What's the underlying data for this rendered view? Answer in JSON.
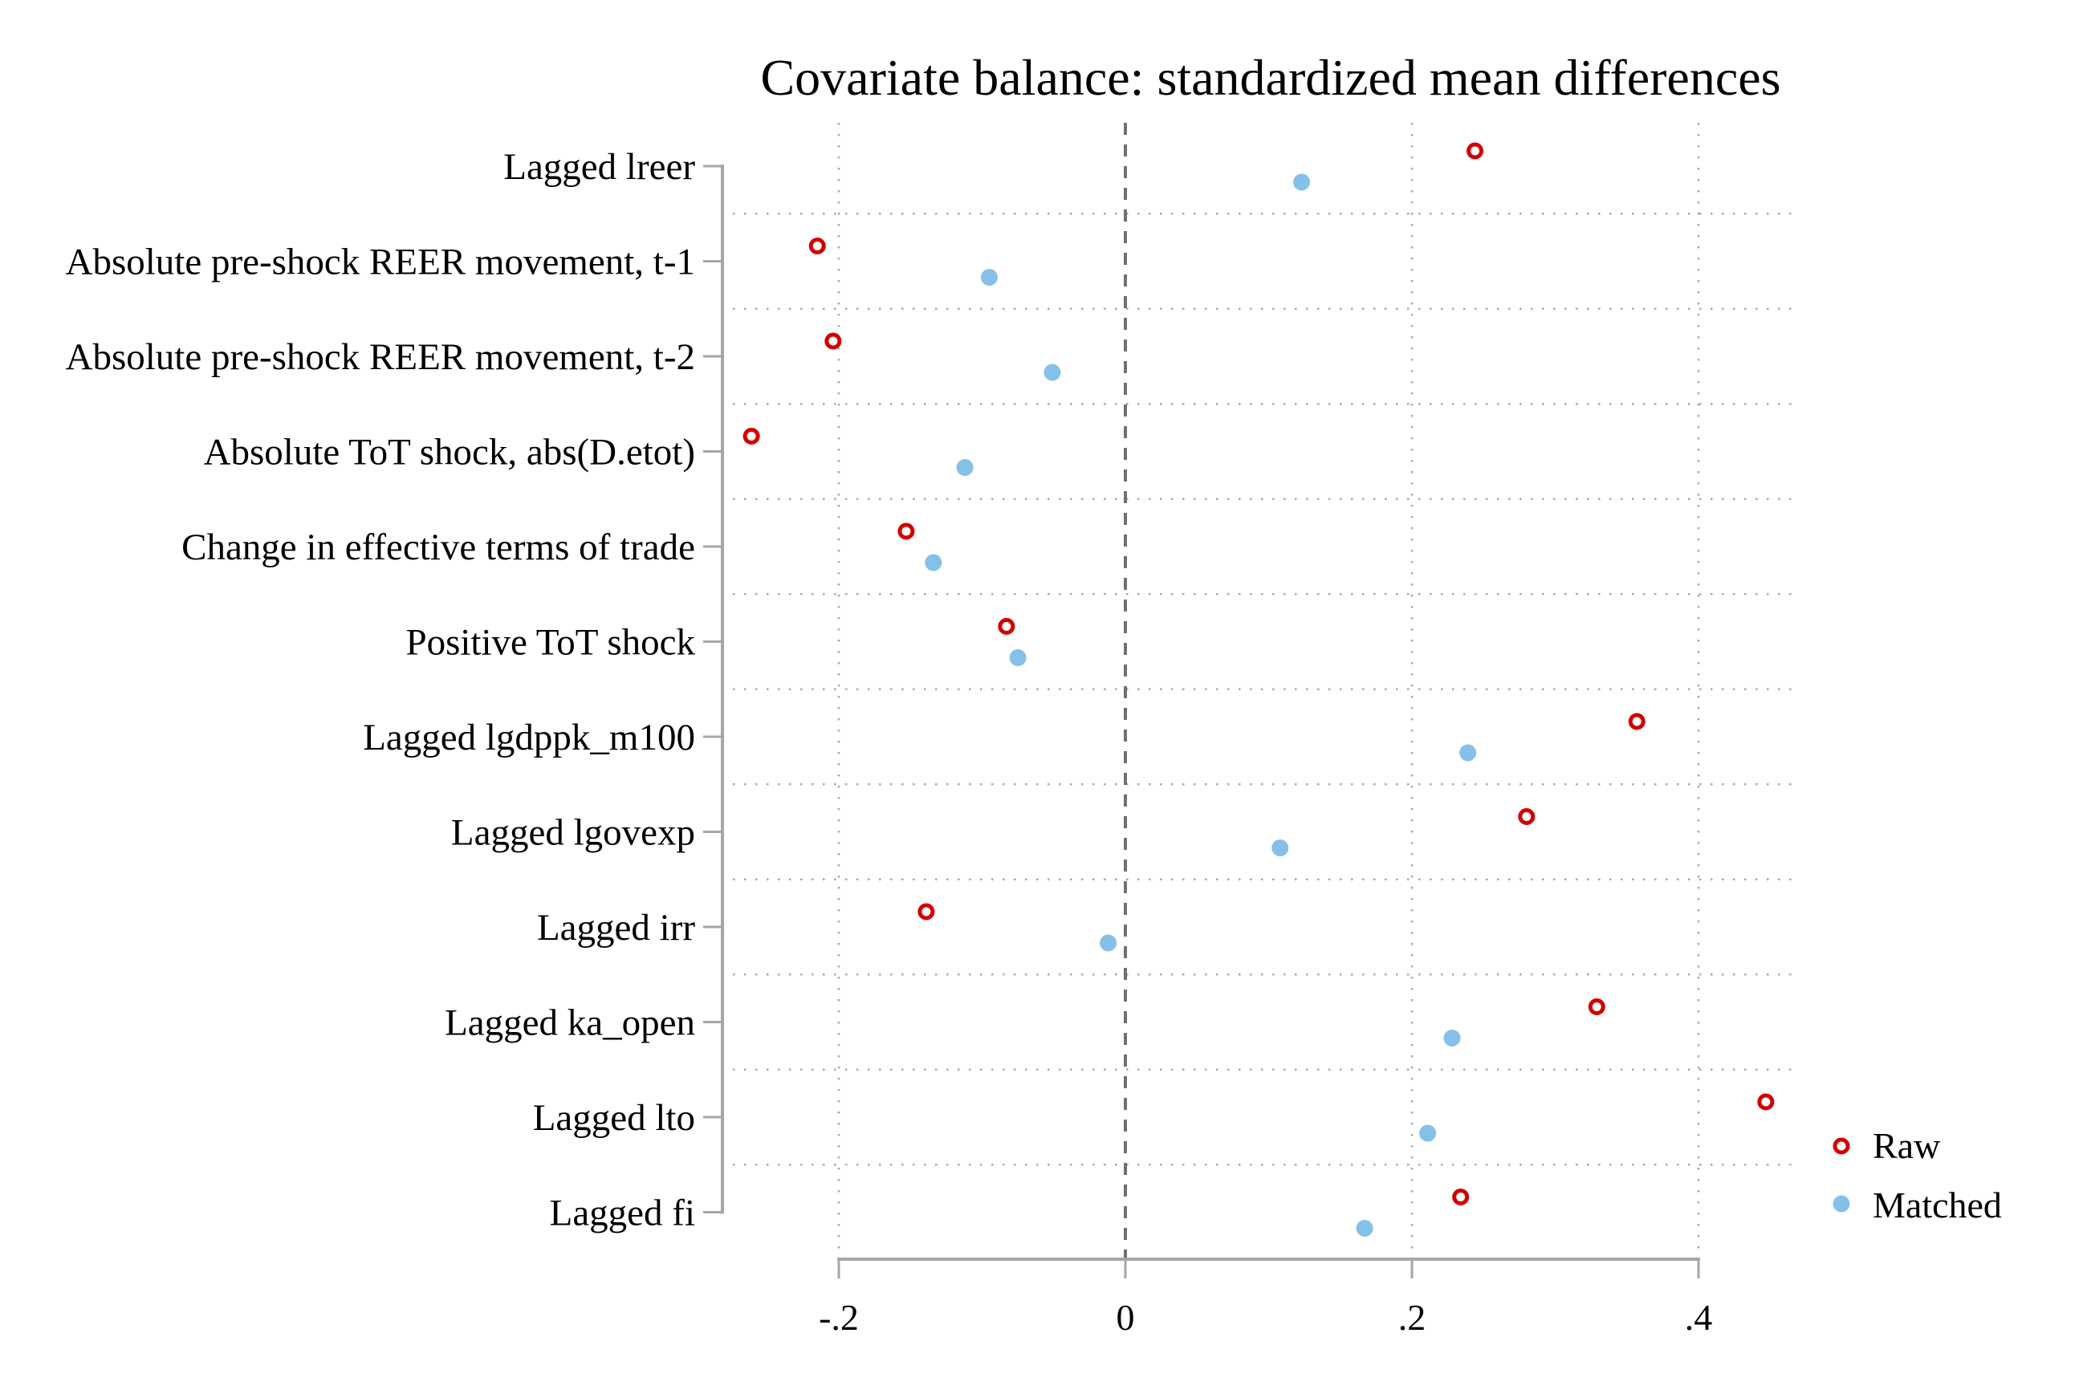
{
  "chart_data": {
    "type": "scatter",
    "title": "Covariate balance: standardized mean differences",
    "xlabel": "",
    "ylabel": "",
    "xlim": [
      -0.26,
      0.45
    ],
    "xticks": [
      -0.2,
      0,
      0.2,
      0.4
    ],
    "xtick_labels": [
      "-.2",
      "0",
      ".2",
      ".4"
    ],
    "reference_line": {
      "x": 0,
      "style": "dashed"
    },
    "grid": true,
    "legend_position": "bottom-right",
    "categories": [
      "Lagged lreer",
      "Absolute pre-shock REER movement, t-1",
      "Absolute pre-shock REER movement, t-2",
      "Absolute ToT shock, abs(D.etot)",
      "Change in effective terms of trade",
      "Positive ToT shock",
      "Lagged lgdppk_m100",
      "Lagged lgovexp",
      "Lagged irr",
      "Lagged ka_open",
      "Lagged lto",
      "Lagged fi"
    ],
    "series": [
      {
        "name": "Raw",
        "marker": "hollow-circle",
        "color": "#d40000",
        "values": [
          0.244,
          -0.215,
          -0.204,
          -0.261,
          -0.153,
          -0.083,
          0.357,
          0.28,
          -0.139,
          0.329,
          0.447,
          0.234
        ]
      },
      {
        "name": "Matched",
        "marker": "filled-circle",
        "color": "#85c0e9",
        "values": [
          0.123,
          -0.095,
          -0.051,
          -0.112,
          -0.134,
          -0.075,
          0.239,
          0.108,
          -0.012,
          0.228,
          0.211,
          0.167
        ]
      }
    ]
  }
}
